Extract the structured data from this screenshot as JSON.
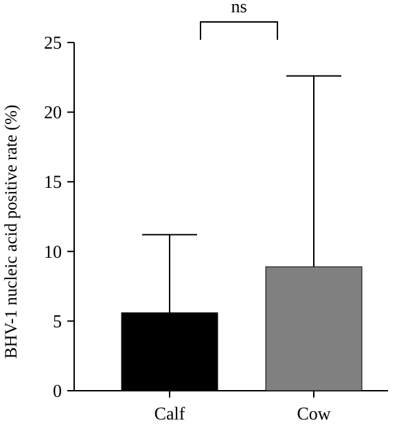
{
  "chart_data": {
    "type": "bar",
    "categories": [
      "Calf",
      "Cow"
    ],
    "values": [
      5.6,
      8.9
    ],
    "error_upper": [
      11.2,
      22.6
    ],
    "colors": [
      "#000000",
      "#808080"
    ],
    "ylabel": "BHV-1 nucleic acid positive rate (%)",
    "ylim": [
      0,
      25
    ],
    "yticks": [
      0,
      5,
      10,
      15,
      20,
      25
    ],
    "significance": "ns",
    "grid": false
  }
}
